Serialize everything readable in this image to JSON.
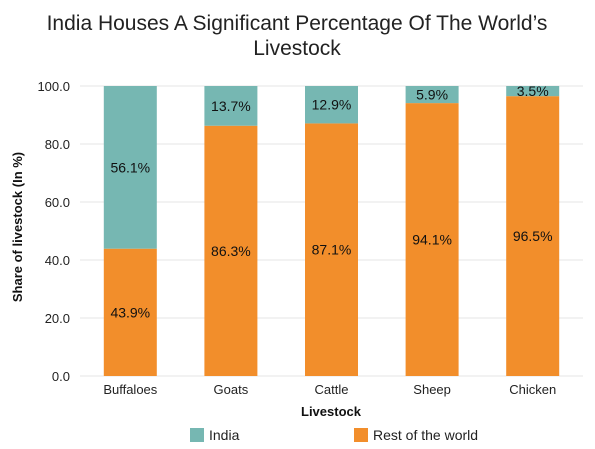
{
  "chart_data": {
    "type": "bar",
    "stacked": true,
    "title": "India Houses A Significant Percentage Of The World’s Livestock",
    "title_lines": [
      "India Houses A Significant Percentage Of The World’s",
      "Livestock"
    ],
    "xlabel": "Livestock",
    "ylabel": "Share of livestock (In %)",
    "ylim": [
      0,
      100
    ],
    "yticks": [
      "0.0",
      "20.0",
      "40.0",
      "60.0",
      "80.0",
      "100.0"
    ],
    "grid": "horizontal",
    "legend_position": "bottom",
    "categories": [
      "Buffaloes",
      "Goats",
      "Cattle",
      "Sheep",
      "Chicken"
    ],
    "series": [
      {
        "name": "Rest of the world",
        "color": "#F28E2B",
        "values": [
          43.9,
          86.3,
          87.1,
          94.1,
          96.5
        ],
        "labels": [
          "43.9%",
          "86.3%",
          "87.1%",
          "94.1%",
          "96.5%"
        ]
      },
      {
        "name": "India",
        "color": "#76B7B2",
        "values": [
          56.1,
          13.7,
          12.9,
          5.9,
          3.5
        ],
        "labels": [
          "56.1%",
          "13.7%",
          "12.9%",
          "5.9%",
          "3.5%"
        ]
      }
    ],
    "legend": [
      "India",
      "Rest of the world"
    ]
  }
}
